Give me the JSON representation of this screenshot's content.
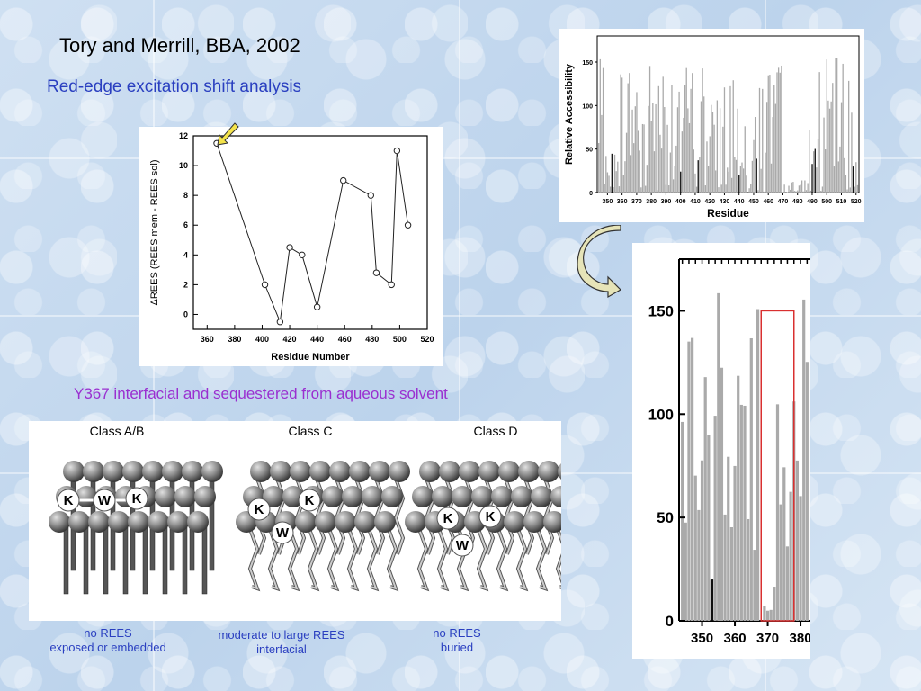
{
  "slide": {
    "title": "Tory and Merrill, BBA, 2002",
    "subtitle": "Red-edge excitation shift analysis",
    "caption": "Y367 interfacial and sequestered from aqueous solvent"
  },
  "classes": [
    {
      "name": "Class A/B",
      "label_line1": "no REES",
      "label_line2": "exposed or embedded"
    },
    {
      "name": "Class C",
      "label_line1": "moderate to large REES",
      "label_line2": "interfacial"
    },
    {
      "name": "Class D",
      "label_line1": "no REES",
      "label_line2": "buried"
    }
  ],
  "chart_data": [
    {
      "type": "line",
      "xlabel": "Residue Number",
      "ylabel": "ΔREES (REES mem - REES sol)",
      "xlim": [
        350,
        520
      ],
      "ylim": [
        -1,
        12
      ],
      "xticks": [
        "360",
        "380",
        "400",
        "420",
        "440",
        "460",
        "480",
        "500",
        "520"
      ],
      "yticks": [
        "0",
        "2",
        "4",
        "6",
        "8",
        "10",
        "12"
      ],
      "x": [
        367,
        402,
        413,
        420,
        429,
        440,
        459,
        479,
        483,
        494,
        498,
        506
      ],
      "y": [
        11.5,
        2,
        -0.5,
        4.5,
        4,
        0.5,
        9,
        8,
        2.8,
        2,
        11,
        6
      ]
    },
    {
      "type": "bar",
      "xlabel": "Residue",
      "ylabel": "Relative Accessibility",
      "xlim": [
        343,
        522
      ],
      "ylim": [
        0,
        180
      ],
      "xticks": [
        "350",
        "360",
        "370",
        "380",
        "390",
        "400",
        "410",
        "420",
        "430",
        "440",
        "450",
        "460",
        "470",
        "480",
        "490",
        "500",
        "510",
        "520"
      ],
      "yticks": [
        "0",
        "50",
        "100",
        "150"
      ]
    },
    {
      "type": "bar",
      "xlabel": "",
      "ylabel": "",
      "xlim": [
        343,
        383
      ],
      "ylim": [
        0,
        175
      ],
      "xticks": [
        "350",
        "360",
        "370",
        "380"
      ],
      "yticks": [
        "0",
        "50",
        "100",
        "150"
      ],
      "highlight_range": [
        368,
        378
      ],
      "highlight_color": "#d93030"
    }
  ],
  "icons": {
    "arrow_color": "#f4e34a",
    "curved_arrow_color": "#e6e4b8"
  }
}
